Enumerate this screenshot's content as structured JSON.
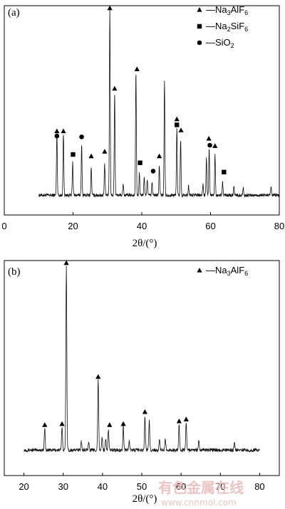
{
  "watermark": {
    "logo_text": "有色金属在线",
    "url": "www.cnnmol.com"
  },
  "chart_data": [
    {
      "type": "line",
      "panel_label": "(a)",
      "xlabel_symbol": "2θ/(°)",
      "xlim": [
        0,
        80
      ],
      "xticks": [
        0,
        20,
        40,
        60,
        80
      ],
      "legend": {
        "placement": "top-right",
        "entries": [
          {
            "marker": "triangle",
            "label": "—Na3AlF6",
            "pretty": [
              "—Na",
              "3",
              "AlF",
              "6"
            ]
          },
          {
            "marker": "square",
            "label": "—Na2SiF6",
            "pretty": [
              "—Na",
              "2",
              "SiF",
              "6"
            ]
          },
          {
            "marker": "circle",
            "label": "—SiO2",
            "pretty": [
              "—SiO",
              "2",
              "",
              ""
            ]
          }
        ]
      },
      "baseline": 0.03,
      "x_start": 10,
      "x_end": 80,
      "peaks": [
        {
          "x": 15.3,
          "y": 0.34
        },
        {
          "x": 17.2,
          "y": 0.33
        },
        {
          "x": 19.9,
          "y": 0.18
        },
        {
          "x": 22.5,
          "y": 0.27
        },
        {
          "x": 25.3,
          "y": 0.15
        },
        {
          "x": 29.2,
          "y": 0.17
        },
        {
          "x": 30.7,
          "y": 1.0
        },
        {
          "x": 32.1,
          "y": 0.55
        },
        {
          "x": 34.6,
          "y": 0.06
        },
        {
          "x": 38.3,
          "y": 0.66
        },
        {
          "x": 39.3,
          "y": 0.12
        },
        {
          "x": 40.7,
          "y": 0.1
        },
        {
          "x": 41.6,
          "y": 0.09
        },
        {
          "x": 43.0,
          "y": 0.07
        },
        {
          "x": 45.1,
          "y": 0.16
        },
        {
          "x": 46.6,
          "y": 0.62
        },
        {
          "x": 50.2,
          "y": 0.36
        },
        {
          "x": 51.3,
          "y": 0.3
        },
        {
          "x": 53.6,
          "y": 0.05
        },
        {
          "x": 57.8,
          "y": 0.06
        },
        {
          "x": 58.8,
          "y": 0.2
        },
        {
          "x": 59.6,
          "y": 0.25
        },
        {
          "x": 61.3,
          "y": 0.22
        },
        {
          "x": 63.5,
          "y": 0.07
        },
        {
          "x": 66.8,
          "y": 0.05
        },
        {
          "x": 69.5,
          "y": 0.04
        },
        {
          "x": 77.6,
          "y": 0.04
        }
      ],
      "markers": [
        {
          "type": "triangle",
          "x": 15.3,
          "y": 0.375
        },
        {
          "type": "circle",
          "x": 15.3,
          "y": 0.35
        },
        {
          "type": "triangle",
          "x": 17.2,
          "y": 0.375
        },
        {
          "type": "square",
          "x": 20.0,
          "y": 0.25
        },
        {
          "type": "circle",
          "x": 22.5,
          "y": 0.345
        },
        {
          "type": "triangle",
          "x": 25.3,
          "y": 0.24
        },
        {
          "type": "triangle",
          "x": 29.2,
          "y": 0.265
        },
        {
          "type": "triangle",
          "x": 30.7,
          "y": 1.04
        },
        {
          "type": "triangle",
          "x": 32.1,
          "y": 0.605
        },
        {
          "type": "triangle",
          "x": 38.6,
          "y": 0.71
        },
        {
          "type": "square",
          "x": 39.5,
          "y": 0.205
        },
        {
          "type": "circle",
          "x": 43.3,
          "y": 0.16
        },
        {
          "type": "triangle",
          "x": 45.1,
          "y": 0.24
        },
        {
          "type": "triangle",
          "x": 50.2,
          "y": 0.44
        },
        {
          "type": "square",
          "x": 50.2,
          "y": 0.41
        },
        {
          "type": "triangle",
          "x": 51.4,
          "y": 0.38
        },
        {
          "type": "triangle",
          "x": 59.5,
          "y": 0.335
        },
        {
          "type": "circle",
          "x": 59.8,
          "y": 0.3
        },
        {
          "type": "triangle",
          "x": 61.3,
          "y": 0.295
        },
        {
          "type": "square",
          "x": 63.9,
          "y": 0.155
        }
      ]
    },
    {
      "type": "line",
      "panel_label": "(b)",
      "xlabel_symbol": "2θ/(°)",
      "xlim": [
        15,
        85
      ],
      "xticks": [
        20,
        30,
        40,
        50,
        60,
        70,
        80
      ],
      "legend": {
        "placement": "top-right",
        "entries": [
          {
            "marker": "triangle",
            "label": "—Na3AlF6",
            "pretty": [
              "—Na",
              "3",
              "AlF",
              "6"
            ]
          }
        ]
      },
      "baseline": 0.03,
      "x_start": 20,
      "x_end": 80,
      "peaks": [
        {
          "x": 25.3,
          "y": 0.12
        },
        {
          "x": 29.7,
          "y": 0.13
        },
        {
          "x": 30.8,
          "y": 1.0
        },
        {
          "x": 34.6,
          "y": 0.05
        },
        {
          "x": 36.5,
          "y": 0.05
        },
        {
          "x": 38.9,
          "y": 0.38
        },
        {
          "x": 39.9,
          "y": 0.07
        },
        {
          "x": 40.8,
          "y": 0.06
        },
        {
          "x": 41.5,
          "y": 0.11
        },
        {
          "x": 45.3,
          "y": 0.13
        },
        {
          "x": 46.8,
          "y": 0.05
        },
        {
          "x": 50.8,
          "y": 0.18
        },
        {
          "x": 51.9,
          "y": 0.16
        },
        {
          "x": 54.5,
          "y": 0.05
        },
        {
          "x": 56.0,
          "y": 0.06
        },
        {
          "x": 59.5,
          "y": 0.14
        },
        {
          "x": 61.3,
          "y": 0.15
        },
        {
          "x": 64.5,
          "y": 0.05
        },
        {
          "x": 73.6,
          "y": 0.04
        }
      ],
      "markers": [
        {
          "type": "triangle",
          "x": 25.3,
          "y": 0.165
        },
        {
          "type": "triangle",
          "x": 29.7,
          "y": 0.17
        },
        {
          "type": "triangle",
          "x": 30.8,
          "y": 1.04
        },
        {
          "type": "triangle",
          "x": 38.9,
          "y": 0.425
        },
        {
          "type": "triangle",
          "x": 41.8,
          "y": 0.165
        },
        {
          "type": "triangle",
          "x": 45.3,
          "y": 0.17
        },
        {
          "type": "triangle",
          "x": 50.8,
          "y": 0.235
        },
        {
          "type": "triangle",
          "x": 59.5,
          "y": 0.185
        },
        {
          "type": "triangle",
          "x": 61.3,
          "y": 0.195
        }
      ]
    }
  ]
}
